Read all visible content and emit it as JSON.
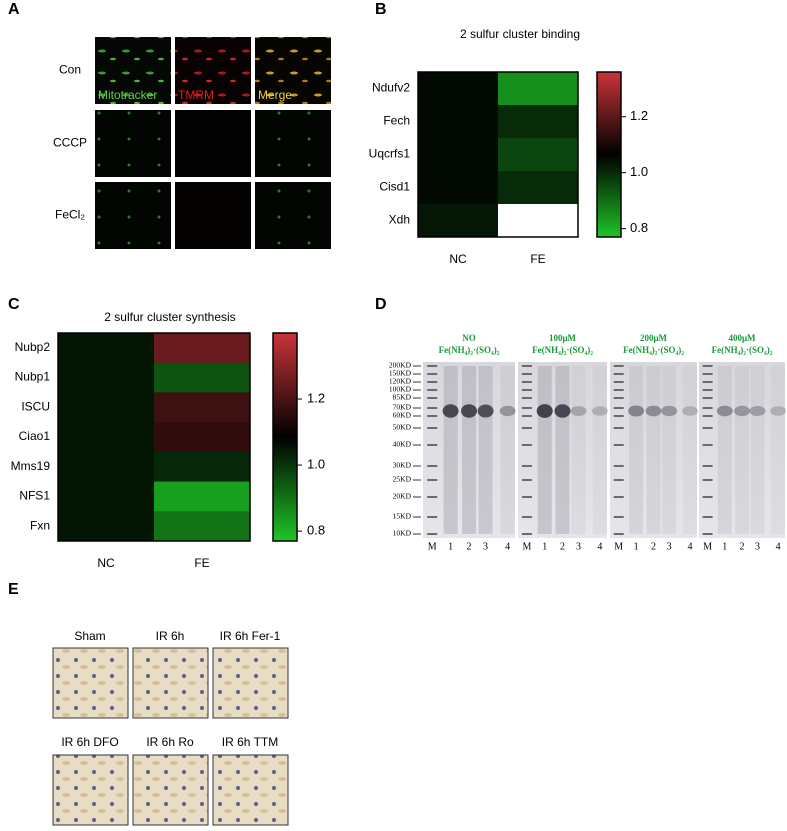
{
  "panels": {
    "A": {
      "letter": "A",
      "rows": [
        "Con",
        "CCCP",
        "FeCl₂"
      ],
      "channels": [
        "Mitotracker",
        "TMRM",
        "Merge"
      ]
    },
    "D": {
      "letter": "D",
      "groups": [
        {
          "line1": "NO",
          "line2": "Fe(NH₄)₂·(SO₄)₂"
        },
        {
          "line1": "100μM",
          "line2": "Fe(NH₄)₂·(SO₄)₂"
        },
        {
          "line1": "200μM",
          "line2": "Fe(NH₄)₂·(SO₄)₂"
        },
        {
          "line1": "400μM",
          "line2": "Fe(NH₄)₂·(SO₄)₂"
        }
      ],
      "markers": [
        "200KD",
        "150KD",
        "120KD",
        "100KD",
        "85KD",
        "70KD",
        "60KD",
        "50KD",
        "40KD",
        "30KD",
        "25KD",
        "20KD",
        "15KD",
        "10KD"
      ],
      "lanes": [
        "M",
        "1",
        "2",
        "3",
        "4"
      ]
    },
    "E": {
      "letter": "E",
      "images": [
        "Sham",
        "IR 6h",
        "IR 6h Fer-1",
        "IR 6h DFO",
        "IR 6h Ro",
        "IR 6h TTM"
      ]
    }
  },
  "chart_data": [
    {
      "type": "heatmap",
      "letter": "B",
      "title": "2 sulfur cluster binding",
      "rows": [
        "Ndufv2",
        "Fech",
        "Uqcrfs1",
        "Cisd1",
        "Xdh"
      ],
      "columns": [
        "NC",
        "FE"
      ],
      "values": [
        [
          1.05,
          0.85
        ],
        [
          1.05,
          1.0
        ],
        [
          1.05,
          0.96
        ],
        [
          1.05,
          1.0
        ],
        [
          1.03,
          null
        ]
      ],
      "zlim": [
        0.77,
        1.36
      ],
      "zticks": [
        0.8,
        {
          "value": 1,
          "label": "1.0"
        },
        1.2
      ],
      "colors": [
        "#1fc427",
        "#000000",
        "#c93439"
      ]
    },
    {
      "type": "heatmap",
      "letter": "C",
      "title": "2 sulfur cluster synthesis",
      "rows": [
        "Nubp2",
        "Nubp1",
        "ISCU",
        "Ciao1",
        "Mms19",
        "NFS1",
        "Fxn"
      ],
      "columns": [
        "NC",
        "FE"
      ],
      "values": [
        [
          1.05,
          1.25
        ],
        [
          1.05,
          0.95
        ],
        [
          1.05,
          1.18
        ],
        [
          1.05,
          1.16
        ],
        [
          1.05,
          1.02
        ],
        [
          1.05,
          0.83
        ],
        [
          1.05,
          0.9
        ]
      ],
      "zlim": [
        0.77,
        1.4
      ],
      "zticks": [
        0.8,
        {
          "value": 1,
          "label": "1.0"
        },
        1.2
      ],
      "colors": [
        "#1fc427",
        "#000000",
        "#c93439"
      ]
    }
  ]
}
